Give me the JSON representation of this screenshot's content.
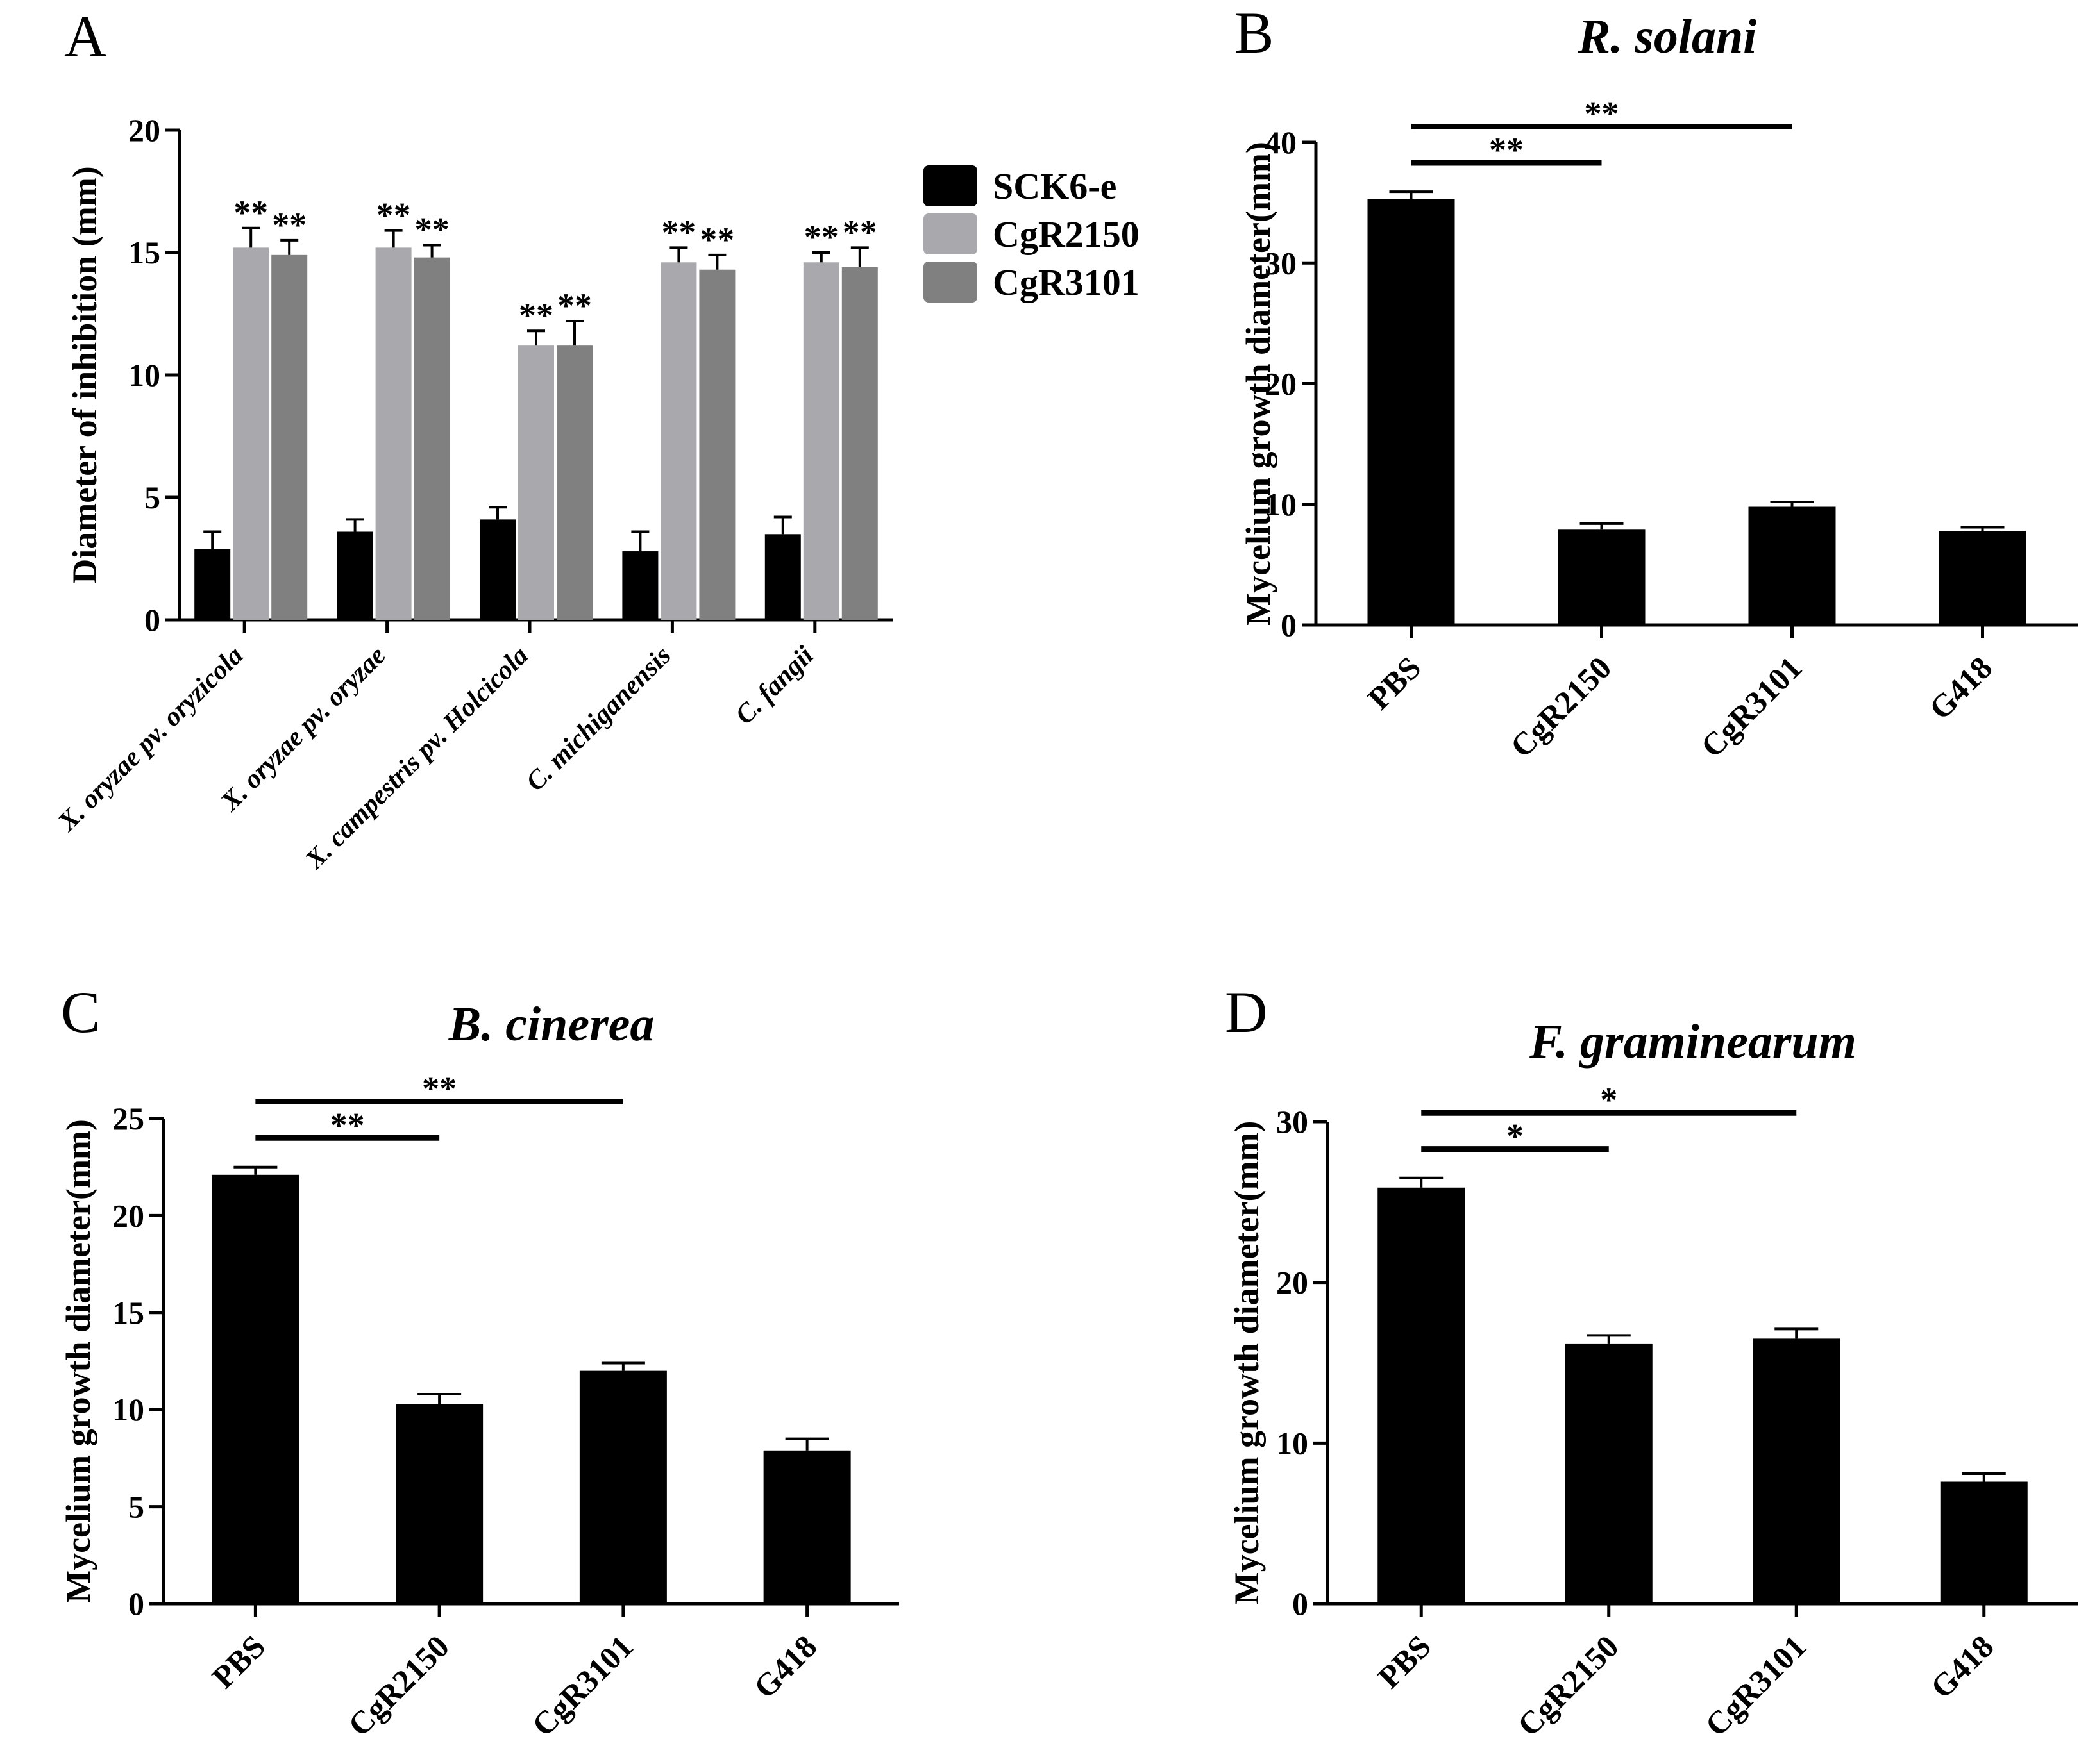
{
  "chart_data": [
    {
      "panel": "A",
      "type": "bar",
      "title": "",
      "xlabel": "",
      "ylabel": "Diameter of inhibition (mm)",
      "ylim": [
        0,
        20
      ],
      "yticks": [
        "0",
        "5",
        "10",
        "15",
        "20"
      ],
      "categories": [
        "X. oryzae pv. oryzicola",
        "X. oryzae pv. oryzae",
        "X. campestris pv. Holcicola",
        "C. michiganensis",
        "C. fangii"
      ],
      "legend": [
        "SCK6-e",
        "CgR2150",
        "CgR3101"
      ],
      "legend_position": "right",
      "series": [
        {
          "name": "SCK6-e",
          "color": "#000000",
          "values": [
            2.9,
            3.6,
            4.1,
            2.8,
            3.5
          ],
          "errors": [
            0.7,
            0.5,
            0.5,
            0.8,
            0.7
          ],
          "sig": [
            "",
            "",
            "",
            "",
            ""
          ]
        },
        {
          "name": "CgR2150",
          "color": "#a8a8ad",
          "values": [
            15.2,
            15.2,
            11.2,
            14.6,
            14.6
          ],
          "errors": [
            0.8,
            0.7,
            0.6,
            0.6,
            0.4
          ],
          "sig": [
            "**",
            "**",
            "**",
            "**",
            "**"
          ]
        },
        {
          "name": "CgR3101",
          "color": "#808080",
          "values": [
            14.9,
            14.8,
            11.2,
            14.3,
            14.4
          ],
          "errors": [
            0.6,
            0.5,
            1.0,
            0.6,
            0.8
          ],
          "sig": [
            "**",
            "**",
            "**",
            "**",
            "**"
          ]
        }
      ]
    },
    {
      "panel": "B",
      "type": "bar",
      "title": "R. solani",
      "xlabel": "",
      "ylabel": "Mycelium growth diameter(mm)",
      "ylim": [
        0,
        40
      ],
      "yticks": [
        "0",
        "10",
        "20",
        "30",
        "40"
      ],
      "categories": [
        "PBS",
        "CgR2150",
        "CgR3101",
        "G418"
      ],
      "values": [
        35.3,
        7.9,
        9.8,
        7.8
      ],
      "errors": [
        0.6,
        0.5,
        0.4,
        0.3
      ],
      "comparisons": [
        {
          "from": 0,
          "to": 1,
          "label": "**"
        },
        {
          "from": 0,
          "to": 2,
          "label": "**"
        }
      ]
    },
    {
      "panel": "C",
      "type": "bar",
      "title": "B. cinerea",
      "xlabel": "",
      "ylabel": "Mycelium growth diameter(mm)",
      "ylim": [
        0,
        25
      ],
      "yticks": [
        "0",
        "5",
        "10",
        "15",
        "20",
        "25"
      ],
      "categories": [
        "PBS",
        "CgR2150",
        "CgR3101",
        "G418"
      ],
      "values": [
        22.1,
        10.3,
        12.0,
        7.9
      ],
      "errors": [
        0.4,
        0.5,
        0.4,
        0.6
      ],
      "comparisons": [
        {
          "from": 0,
          "to": 1,
          "label": "**"
        },
        {
          "from": 0,
          "to": 2,
          "label": "**"
        }
      ]
    },
    {
      "panel": "D",
      "type": "bar",
      "title": "F. graminearum",
      "xlabel": "",
      "ylabel": "Mycelium growth diameter(mm)",
      "ylim": [
        0,
        30
      ],
      "yticks": [
        "0",
        "10",
        "20",
        "30"
      ],
      "categories": [
        "PBS",
        "CgR2150",
        "CgR3101",
        "G418"
      ],
      "values": [
        25.9,
        16.2,
        16.5,
        7.6
      ],
      "errors": [
        0.6,
        0.5,
        0.6,
        0.5
      ],
      "comparisons": [
        {
          "from": 0,
          "to": 1,
          "label": "*"
        },
        {
          "from": 0,
          "to": 2,
          "label": "*"
        }
      ]
    }
  ]
}
